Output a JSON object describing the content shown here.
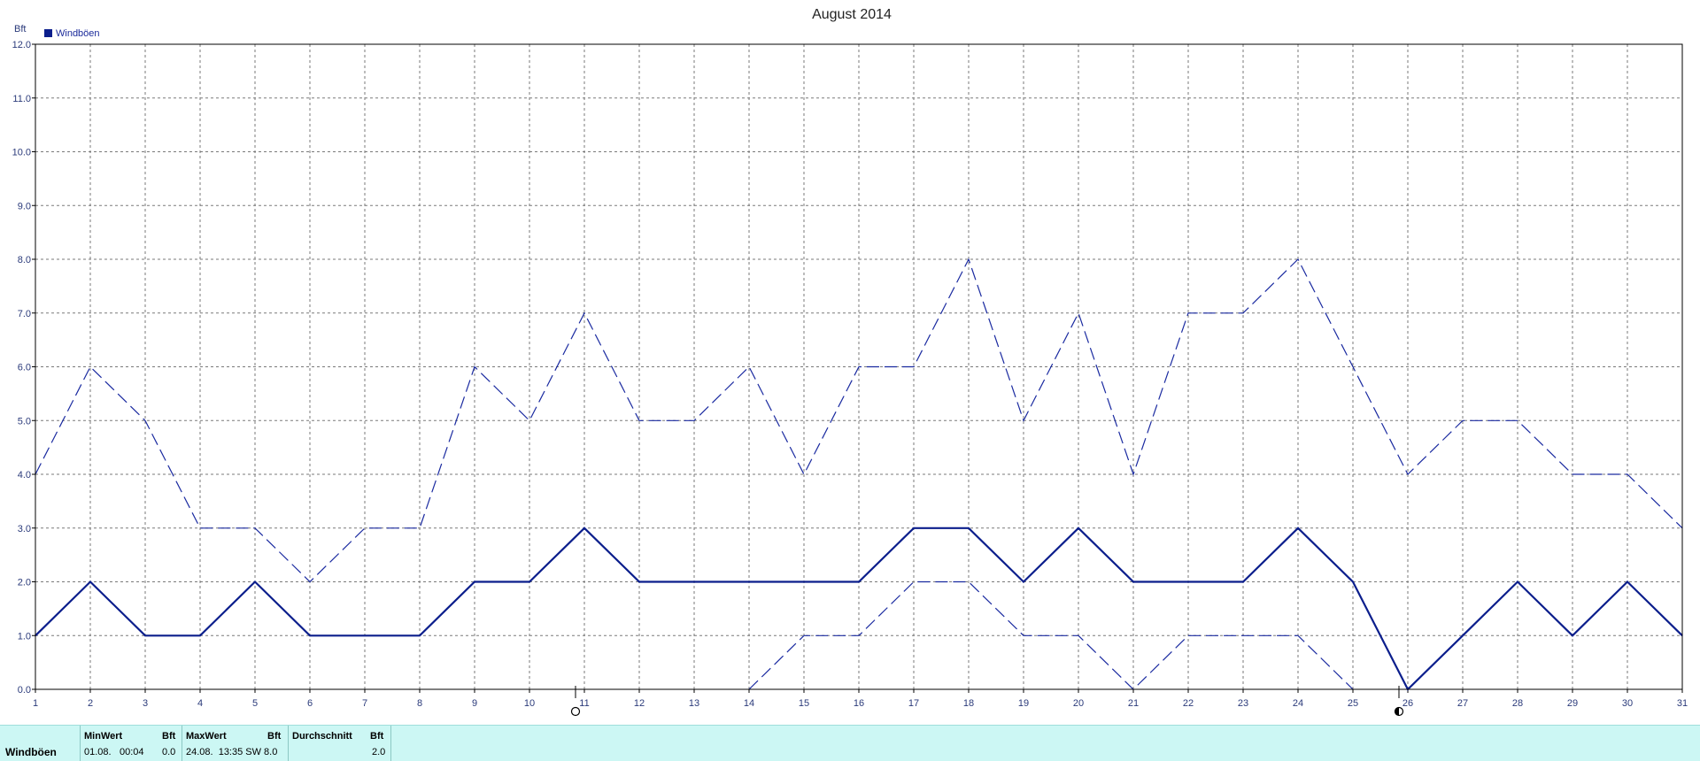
{
  "chart_data": {
    "type": "line",
    "title": "August 2014",
    "ylabel": "Bft",
    "ylim": [
      0,
      12
    ],
    "yticks": [
      "0.0",
      "1.0",
      "2.0",
      "3.0",
      "4.0",
      "5.0",
      "6.0",
      "7.0",
      "8.0",
      "9.0",
      "10.0",
      "11.0",
      "12.0"
    ],
    "x": [
      1,
      2,
      3,
      4,
      5,
      6,
      7,
      8,
      9,
      10,
      11,
      12,
      13,
      14,
      15,
      16,
      17,
      18,
      19,
      20,
      21,
      22,
      23,
      24,
      25,
      26,
      27,
      28,
      29,
      30,
      31
    ],
    "legend": {
      "position": "top-left"
    },
    "grid": true,
    "series": [
      {
        "name": "Windböen",
        "style": "solid",
        "color": "#0b1e8c",
        "values": [
          1,
          2,
          1,
          1,
          2,
          1,
          1,
          1,
          2,
          2,
          3,
          2,
          2,
          2,
          2,
          2,
          3,
          3,
          2,
          3,
          2,
          2,
          2,
          3,
          2,
          0,
          1,
          2,
          1,
          2,
          1
        ]
      },
      {
        "style": "dashed",
        "color": "#1a2aa0",
        "values": [
          4,
          6,
          5,
          3,
          3,
          2,
          3,
          3,
          6,
          5,
          7,
          5,
          5,
          6,
          4,
          6,
          6,
          8,
          5,
          7,
          4,
          7,
          7,
          8,
          6,
          4,
          5,
          5,
          4,
          4,
          3
        ]
      },
      {
        "style": "dashed",
        "color": "#1a2aa0",
        "x": [
          14,
          15,
          16,
          17,
          18,
          19,
          20,
          21,
          22,
          23,
          24,
          25
        ],
        "values": [
          0,
          1,
          1,
          2,
          2,
          1,
          1,
          0,
          1,
          1,
          1,
          0
        ]
      }
    ],
    "moon_phase_markers": [
      {
        "x": 11,
        "icon": "full-moon-icon"
      },
      {
        "x": 26,
        "icon": "last-quarter-moon-icon"
      }
    ]
  },
  "stats": {
    "series_label": "Windböen",
    "min_header": "MinWert",
    "min_unit": "Bft",
    "min_date": "01.08.",
    "min_time": "00:04",
    "min_value": "0.0",
    "max_header": "MaxWert",
    "max_unit": "Bft",
    "max_value_text": "24.08.  13:35 SW 8.0",
    "avg_header": "Durchschnitt",
    "avg_unit": "Bft",
    "avg_value": "2.0"
  }
}
